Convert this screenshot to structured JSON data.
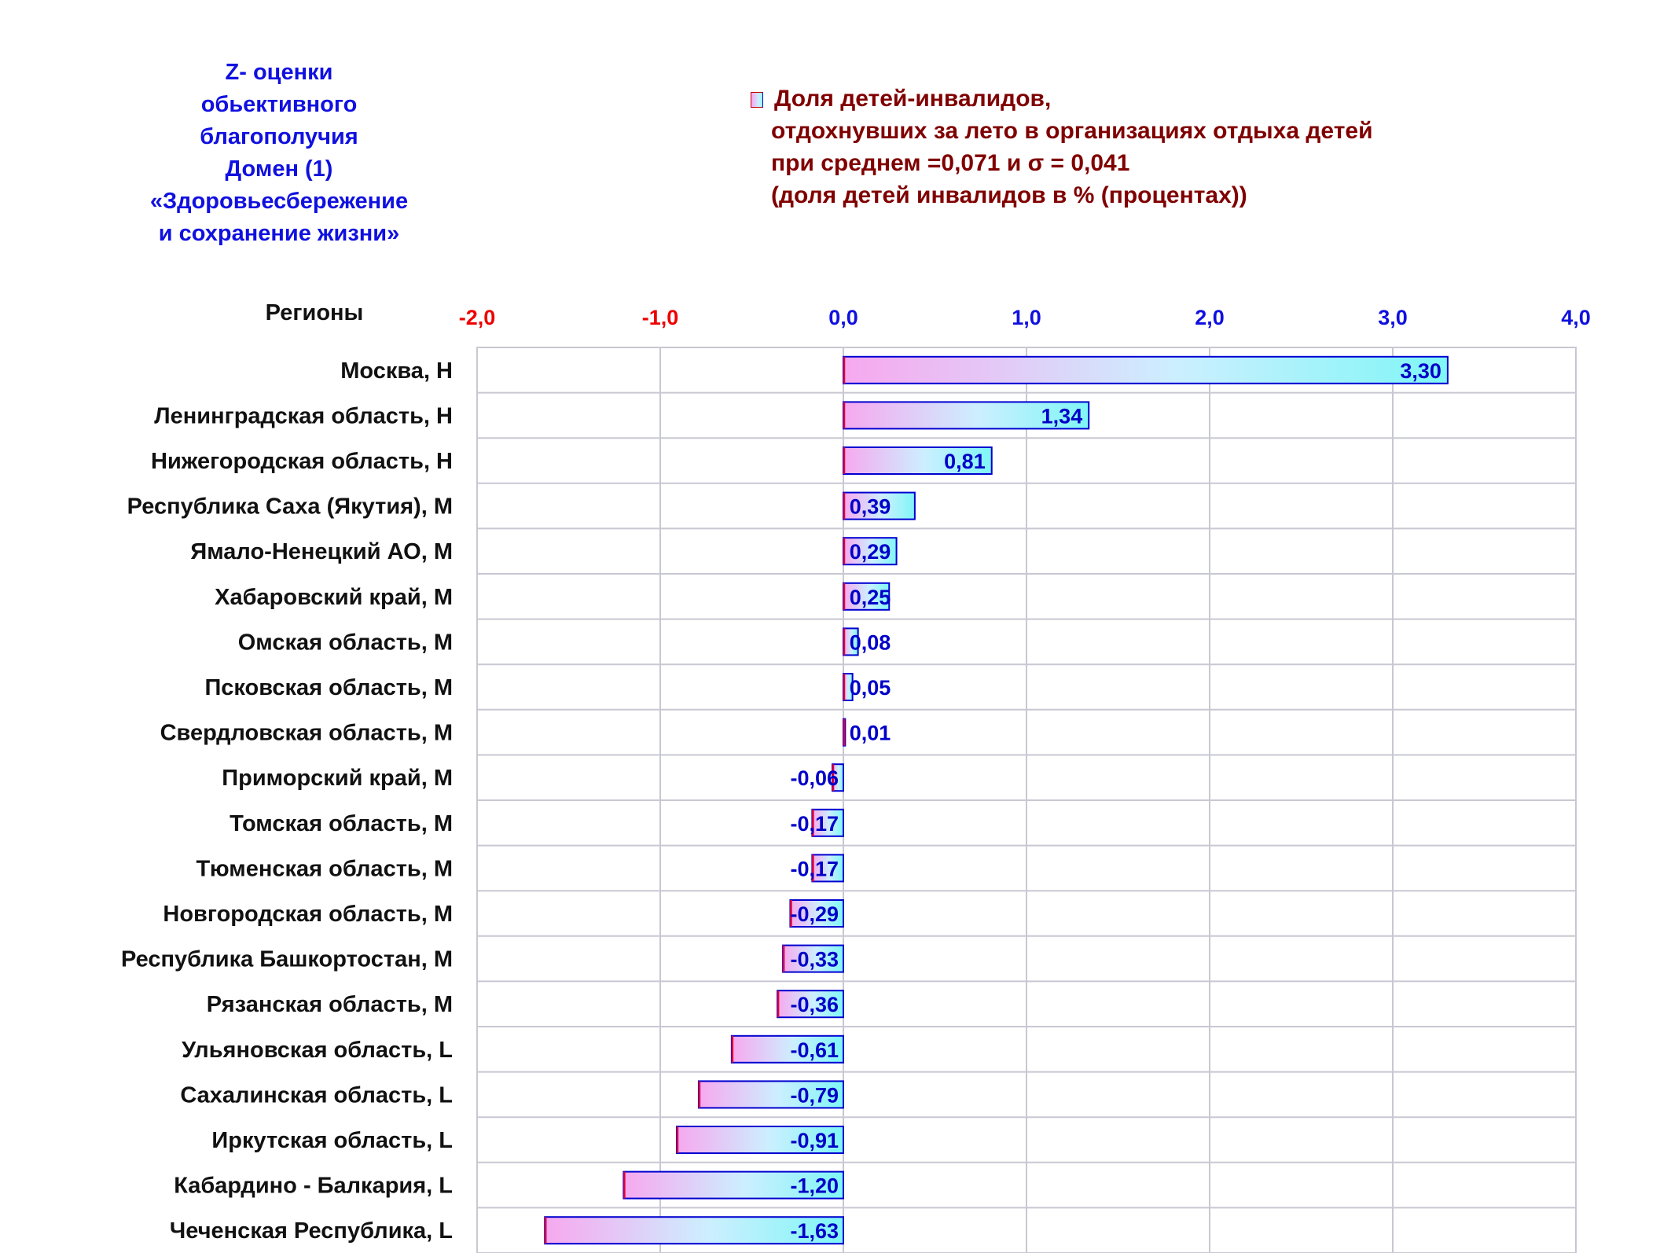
{
  "side_title": {
    "lines": [
      "Z- оценки",
      "обьективного",
      "благополучия",
      "Домен (1)",
      "«Здоровьесбережение",
      "и сохранение жизни»"
    ]
  },
  "legend": {
    "lines": [
      "Доля детей-инвалидов,",
      "отдохнувших за лето в организациях отдыха детей",
      "при среднем =0,071  и σ = 0,041",
      "(доля детей инвалидов в % (процентах))"
    ]
  },
  "colors": {
    "bar_start": "#f7a8ef",
    "bar_mid": "#ccefff",
    "bar_end": "#7ff6f6",
    "bar_border_neg": "#e0003a",
    "bar_border_pos": "#0000d0",
    "negative_tick": "#ee0000",
    "positive_tick": "#1010e0",
    "value_label": "#0000c8",
    "grid": "#c8c8d2"
  },
  "chart_data": {
    "type": "bar",
    "orientation": "horizontal",
    "category_axis_title": "Регионы",
    "xlim": [
      -2.0,
      4.0
    ],
    "x_ticks": [
      "-2,0",
      "-1,0",
      "0,0",
      "1,0",
      "2,0",
      "3,0",
      "4,0"
    ],
    "x_tick_values": [
      -2,
      -1,
      0,
      1,
      2,
      3,
      4
    ],
    "grid": true,
    "legend_position": "top",
    "categories": [
      "Москва,  H",
      "Ленинградская область,  H",
      "Нижегородская область,  H",
      "Республика Саха (Якутия),  M",
      "Ямало-Ненецкий АО,  M",
      "Хабаровский край,  M",
      "Омская область,  M",
      "Псковская область,  M",
      "Свердловская область,  M",
      "Приморский край,  M",
      "Томская область,  M",
      "Тюменская область,  M",
      "Новгородская область,  M",
      "Республика Башкортостан,  M",
      "Рязанская область,  M",
      "Ульяновская область,  L",
      "Сахалинская область,  L",
      "Иркутская область,  L",
      "Кабардино - Балкария,  L",
      "Чеченская Республика,  L"
    ],
    "values": [
      3.3,
      1.34,
      0.81,
      0.39,
      0.29,
      0.25,
      0.08,
      0.05,
      0.01,
      -0.06,
      -0.17,
      -0.17,
      -0.29,
      -0.33,
      -0.36,
      -0.61,
      -0.79,
      -0.91,
      -1.2,
      -1.63
    ],
    "value_labels": [
      "3,30",
      "1,34",
      "0,81",
      "0,39",
      "0,29",
      "0,25",
      "0,08",
      "0,05",
      "0,01",
      "-0,06",
      "-0,17",
      "-0,17",
      "-0,29",
      "-0,33",
      "-0,36",
      "-0,61",
      "-0,79",
      "-0,91",
      "-1,20",
      "-1,63"
    ]
  }
}
